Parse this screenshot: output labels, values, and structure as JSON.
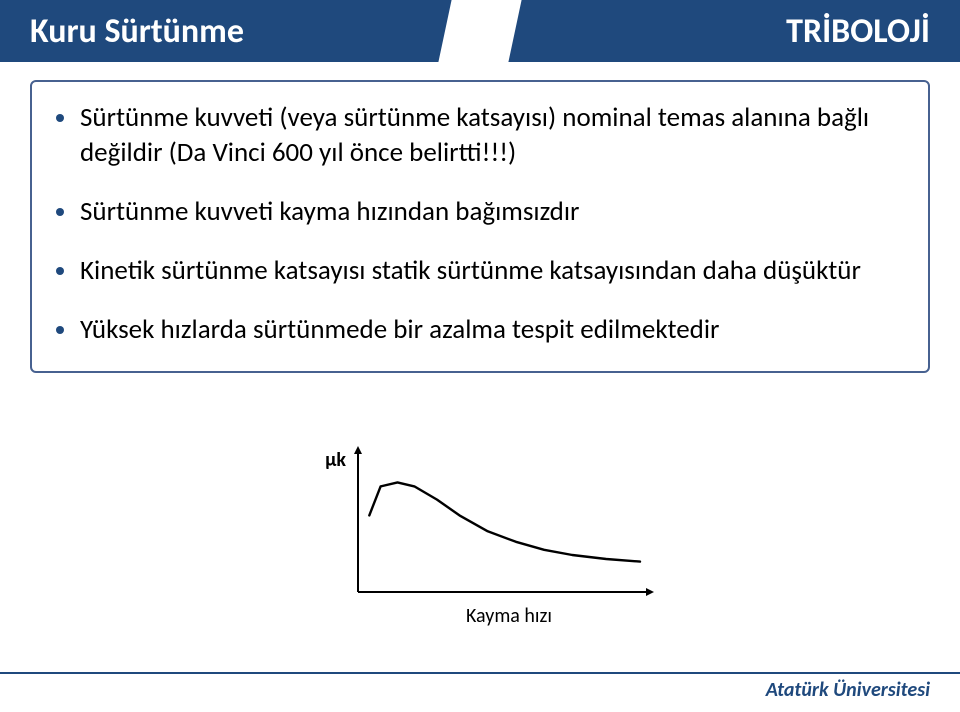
{
  "header": {
    "left_title": "Kuru Sürtünme",
    "right_title": "TRİBOLOJİ",
    "bg_color": "#1f497d",
    "text_color": "#ffffff"
  },
  "content": {
    "border_color": "#476190",
    "bullets": [
      "Sürtünme kuvveti (veya sürtünme katsayısı) nominal temas alanına bağlı değildir (Da Vinci  600 yıl önce belirtti!!!)",
      "Sürtünme kuvveti kayma hızından bağımsızdır",
      "Kinetik sürtünme katsayısı statik sürtünme katsayısından daha düşüktür",
      "Yüksek hızlarda sürtünmede  bir azalma tespit edilmektedir"
    ],
    "bullet_font_size": 27,
    "bullet_dot_color": "#1f497d"
  },
  "chart": {
    "type": "line",
    "y_label": "μk",
    "x_label": "Kayma hızı",
    "label_fontsize": 20,
    "label_weight": "bold",
    "axis_color": "#000000",
    "line_color": "#000000",
    "line_width": 2.4,
    "background_color": "#ffffff",
    "xlim": [
      0,
      100
    ],
    "ylim": [
      0,
      100
    ],
    "points": [
      [
        4,
        58
      ],
      [
        8,
        80
      ],
      [
        14,
        83
      ],
      [
        20,
        80
      ],
      [
        28,
        70
      ],
      [
        36,
        58
      ],
      [
        46,
        46
      ],
      [
        56,
        38
      ],
      [
        66,
        32
      ],
      [
        76,
        28
      ],
      [
        88,
        25
      ],
      [
        100,
        23
      ]
    ]
  },
  "footer": {
    "text": "Atatürk Üniversitesi",
    "line_color": "#1f497d",
    "text_color": "#1f497d"
  }
}
